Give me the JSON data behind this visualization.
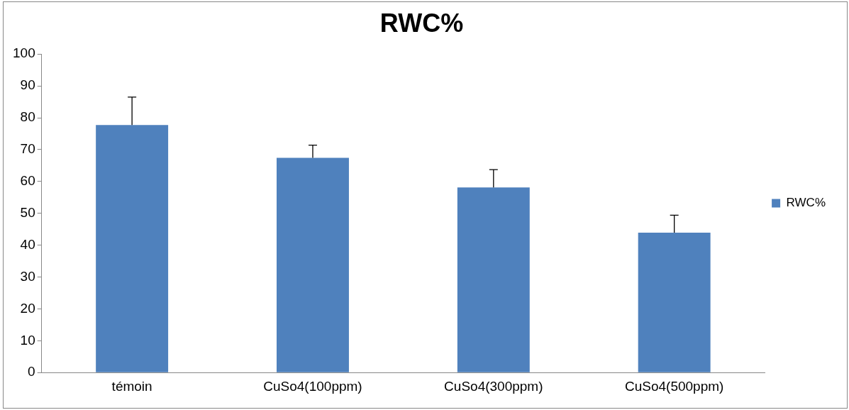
{
  "chart_data": {
    "type": "bar",
    "title": "RWC%",
    "categories": [
      "témoin",
      "CuSo4(100ppm)",
      "CuSo4(300ppm)",
      "CuSo4(500ppm)"
    ],
    "series": [
      {
        "name": "RWC%",
        "color": "#4f81bd",
        "values": [
          77.7,
          67.4,
          58.1,
          43.9
        ],
        "errors": [
          [
            77.7,
            86.5
          ],
          [
            67.4,
            71.4
          ],
          [
            58.1,
            63.7
          ],
          [
            43.9,
            49.4
          ]
        ]
      }
    ],
    "ylim": [
      0,
      100
    ],
    "yticks": [
      0,
      10,
      20,
      30,
      40,
      50,
      60,
      70,
      80,
      90,
      100
    ],
    "grid": false,
    "legend": "right"
  }
}
